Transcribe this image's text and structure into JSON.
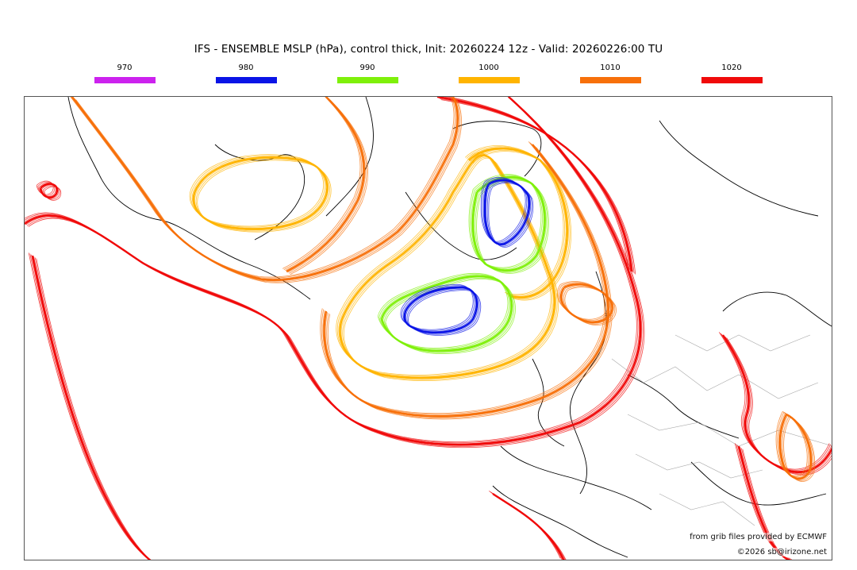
{
  "title": "IFS - ENSEMBLE MSLP (hPa), control thick, Init: 20260224 12z - Valid: 20260226:00 TU",
  "legend": [
    {
      "label": "970",
      "color": "#cc22ee"
    },
    {
      "label": "980",
      "color": "#0a14e6"
    },
    {
      "label": "990",
      "color": "#7ff00a"
    },
    {
      "label": "1000",
      "color": "#ffb400"
    },
    {
      "label": "1010",
      "color": "#f7700a"
    },
    {
      "label": "1020",
      "color": "#f00a0a"
    }
  ],
  "map": {
    "contour_colors": {
      "980": "#0a14e6",
      "990": "#7ff00a",
      "1000": "#ffb400",
      "1010": "#f7700a",
      "1020": "#f00a0a"
    },
    "coastline_color": "#000000",
    "border_color": "#aaaaaa"
  },
  "credits": {
    "line1": "from grib files provided by ECMWF",
    "line2": "©2026 sb@irizone.net"
  }
}
